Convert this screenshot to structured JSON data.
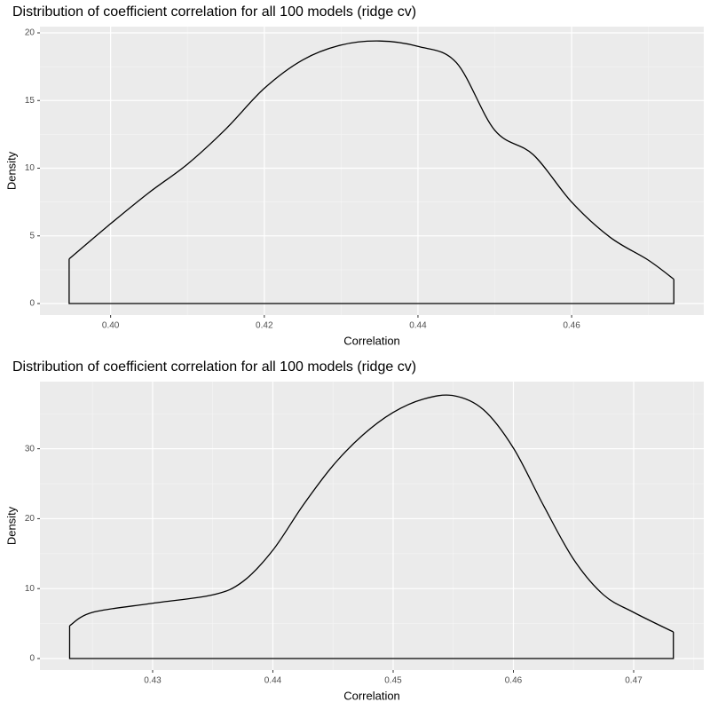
{
  "chart_data": [
    {
      "type": "density",
      "title": "Distribution of coefficient correlation for all 100 models (ridge cv)",
      "x_label": "Correlation",
      "y_label": "Density",
      "color": "#000000",
      "grid": true,
      "x": [
        0.3946,
        0.4,
        0.405,
        0.41,
        0.415,
        0.42,
        0.425,
        0.43,
        0.435,
        0.44,
        0.445,
        0.45,
        0.455,
        0.46,
        0.465,
        0.47,
        0.4733
      ],
      "values": [
        3.3,
        5.9,
        8.2,
        10.3,
        12.9,
        15.9,
        18.0,
        19.1,
        19.4,
        19.0,
        17.8,
        12.8,
        11.0,
        7.5,
        4.9,
        3.2,
        1.8
      ],
      "xlim": [
        0.3908,
        0.4772
      ],
      "ylim": [
        -0.85,
        20.46
      ],
      "xticks": [
        {
          "value": 0.4,
          "label": "0.40"
        },
        0.42,
        0.44,
        0.46
      ],
      "yticks": [
        0,
        5,
        10,
        15,
        20
      ]
    },
    {
      "type": "density",
      "title": "Distribution of coefficient correlation for all 100 models (ridge cv)",
      "x_label": "Correlation",
      "y_label": "Density",
      "color": "#000000",
      "grid": true,
      "x": [
        0.4231,
        0.425,
        0.43,
        0.435,
        0.4375,
        0.44,
        0.4425,
        0.445,
        0.4475,
        0.45,
        0.4525,
        0.455,
        0.4575,
        0.46,
        0.4625,
        0.465,
        0.4675,
        0.47,
        0.4733
      ],
      "values": [
        4.7,
        6.6,
        7.9,
        9.1,
        11.0,
        15.5,
        21.9,
        27.6,
        32.0,
        35.2,
        37.1,
        37.6,
        35.6,
        30.1,
        21.9,
        14.2,
        9.1,
        6.6,
        3.8
      ],
      "xlim": [
        0.42063,
        0.47583
      ],
      "ylim": [
        -1.65,
        39.6
      ],
      "xticks": [
        0.43,
        0.44,
        0.45,
        0.46,
        0.47
      ],
      "yticks": [
        0,
        10,
        20,
        30
      ]
    }
  ]
}
